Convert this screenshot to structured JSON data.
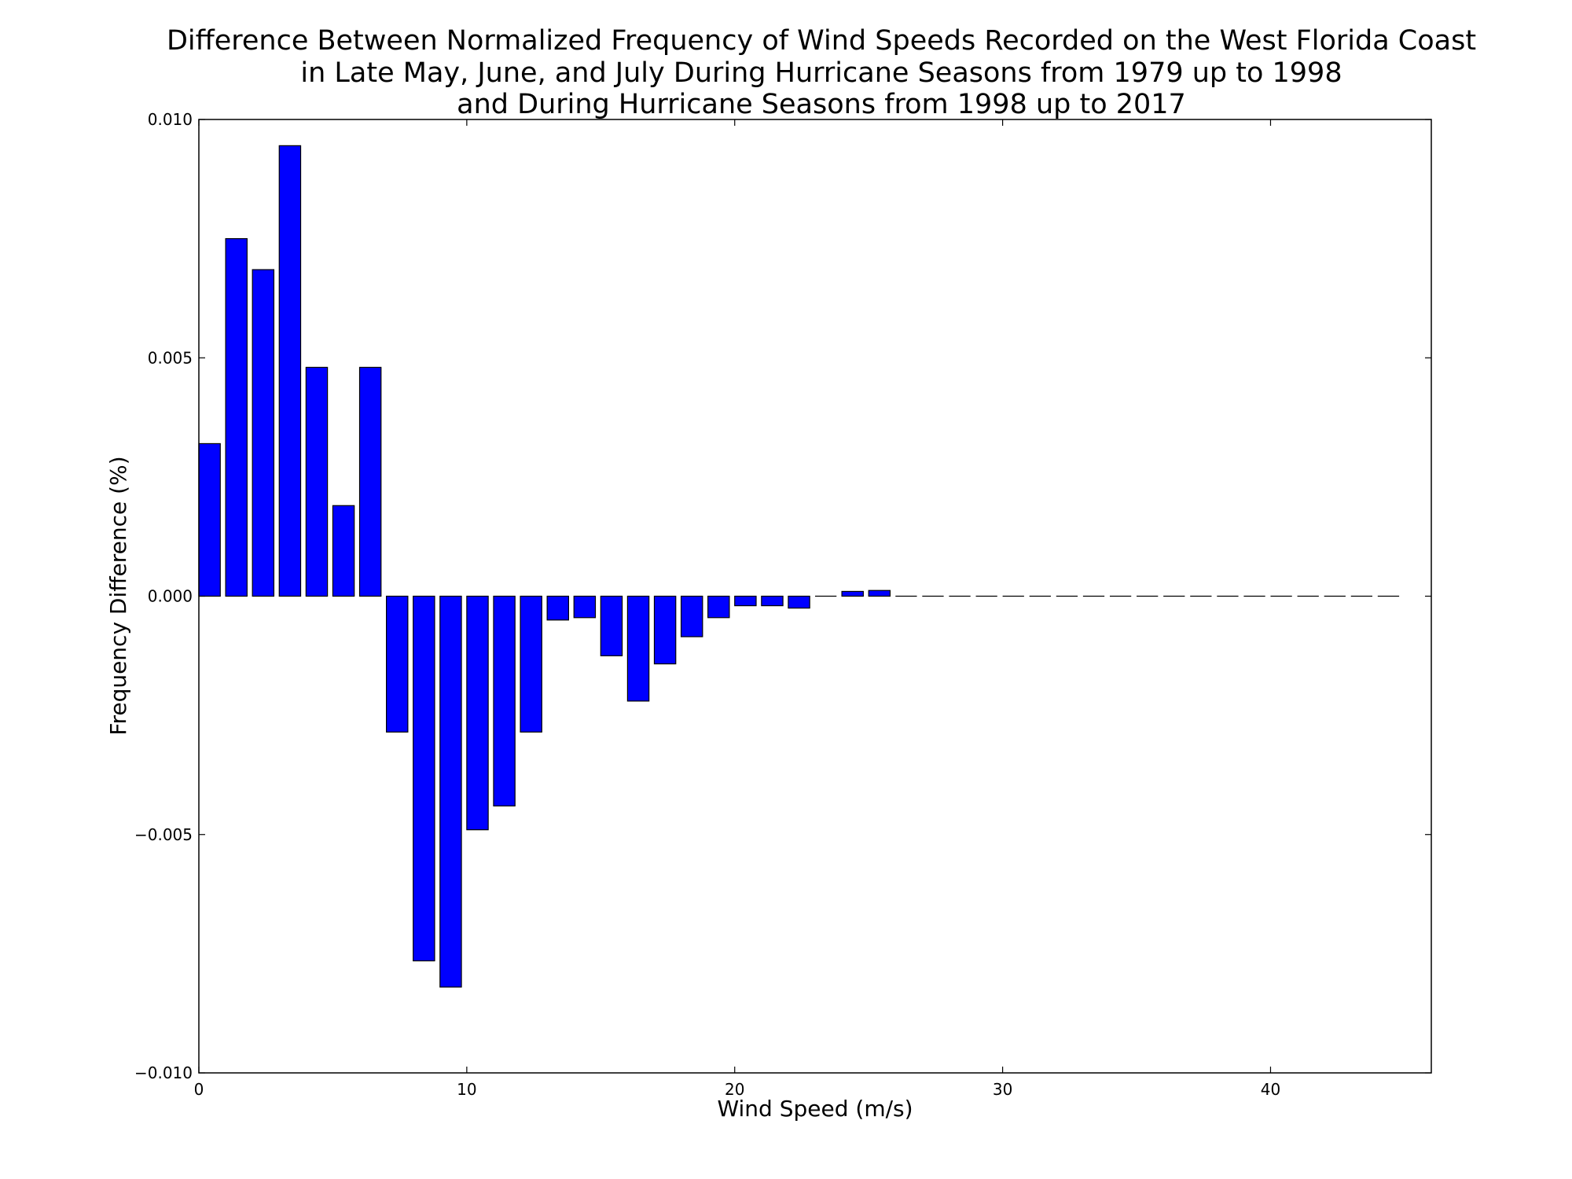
{
  "chart_data": {
    "type": "bar",
    "title_lines": [
      "Difference Between Normalized Frequency of Wind Speeds Recorded on the West Florida Coast",
      "in Late May, June, and July During Hurricane Seasons from 1979 up to 1998",
      "and During Hurricane Seasons from 1998 up to 2017"
    ],
    "xlabel": "Wind Speed (m/s)",
    "ylabel": "Frequency Difference (%)",
    "xlim": [
      0,
      46
    ],
    "ylim": [
      -0.01,
      0.01
    ],
    "x_ticks": [
      0,
      10,
      20,
      30,
      40
    ],
    "x_tick_labels": [
      "0",
      "10",
      "20",
      "30",
      "40"
    ],
    "y_ticks": [
      -0.01,
      -0.005,
      0,
      0.005,
      0.01
    ],
    "y_tick_labels": [
      "−0.010",
      "−0.005",
      "0.000",
      "0.005",
      "0.010"
    ],
    "bar_color": "#0000ff",
    "bar_edge_color": "#000000",
    "x": [
      0,
      1,
      2,
      3,
      4,
      5,
      6,
      7,
      8,
      9,
      10,
      11,
      12,
      13,
      14,
      15,
      16,
      17,
      18,
      19,
      20,
      21,
      22,
      23,
      24,
      25,
      26,
      27,
      28,
      29,
      30,
      31,
      32,
      33,
      34,
      35,
      36,
      37,
      38,
      39,
      40,
      41,
      42,
      43,
      44
    ],
    "values": [
      0.0032,
      0.0075,
      0.00685,
      0.00945,
      0.0048,
      0.0019,
      0.0048,
      -0.00285,
      -0.00765,
      -0.0082,
      -0.0049,
      -0.0044,
      -0.00285,
      -0.0005,
      -0.00045,
      -0.00125,
      -0.0022,
      -0.00142,
      -0.00085,
      -0.00045,
      -0.0002,
      -0.0002,
      -0.00025,
      0,
      0.0001,
      0.00012,
      0,
      0,
      0,
      0,
      0,
      0,
      0,
      0,
      0,
      0,
      0,
      0,
      0,
      0,
      0,
      0,
      0,
      0,
      0
    ],
    "grid": false,
    "legend": "none"
  }
}
